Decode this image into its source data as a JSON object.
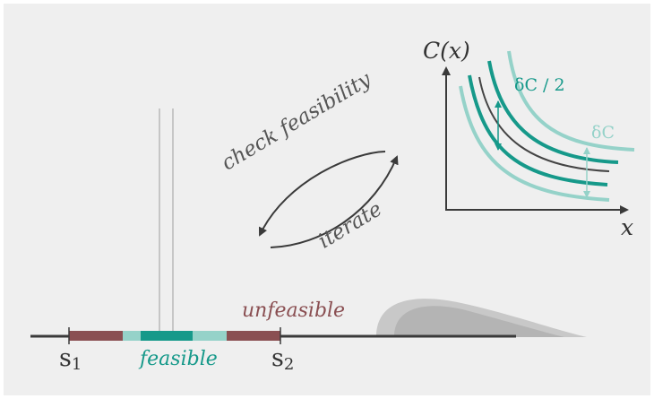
{
  "labels": {
    "check_feasibility": "check feasibility",
    "iterate": "iterate",
    "unfeasible": "unfeasible",
    "feasible": "feasible",
    "s1_base": "s",
    "s1_sub": "1",
    "s2_base": "s",
    "s2_sub": "2"
  },
  "inset": {
    "y_axis_label": "C(x)",
    "x_axis_label": "x",
    "delta_c_half": "δC / 2",
    "delta_c": "δC"
  },
  "colors": {
    "panel": "#efefef",
    "axis": "#3a3a3a",
    "teal": "#16998a",
    "teal_light": "#95d2c9",
    "maroon": "#8a4f52",
    "grey_shape": "#b4b4b4"
  }
}
